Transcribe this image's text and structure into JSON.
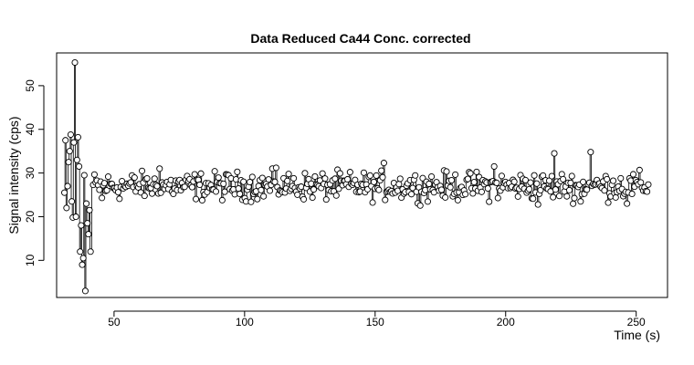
{
  "chart_data": {
    "type": "scatter",
    "title": "Data Reduced Ca44 Conc. corrected",
    "xlabel": "Time (s)",
    "ylabel": "Signal intensity (cps)",
    "xlim": [
      28,
      262
    ],
    "ylim": [
      1.5,
      57.5
    ],
    "xticks": [
      50,
      100,
      150,
      200,
      250
    ],
    "yticks": [
      10,
      20,
      30,
      40,
      50
    ],
    "grid": false,
    "legend": "none",
    "series": [
      {
        "marker": "open-circle",
        "line": "vertical-segments",
        "point_color": "#000000",
        "x": [
          31.0,
          31.4,
          31.8,
          32.2,
          32.6,
          33.0,
          33.4,
          33.8,
          34.2,
          34.6,
          35.0,
          35.4,
          35.8,
          36.2,
          36.6,
          37.0,
          37.4,
          37.8,
          38.2,
          38.6,
          39.0,
          39.4,
          39.8,
          40.2,
          40.6,
          41.0
        ],
        "y": [
          25.5,
          37.5,
          22.0,
          27.0,
          32.5,
          35.0,
          38.8,
          23.5,
          19.8,
          37.0,
          55.3,
          20.0,
          33.0,
          38.2,
          31.5,
          12.0,
          18.0,
          9.0,
          10.5,
          29.5,
          3.0,
          23.0,
          18.5,
          16.0,
          21.5,
          12.0
        ],
        "noise_segment": {
          "x_start": 42,
          "x_end": 255,
          "step": 0.48,
          "center": 27,
          "spread": 2.5
        },
        "spikes": [
          {
            "x": 67.5,
            "y": 31.0
          },
          {
            "x": 110.5,
            "y": 31.0
          },
          {
            "x": 153.5,
            "y": 32.3
          },
          {
            "x": 195.5,
            "y": 31.5
          },
          {
            "x": 218.5,
            "y": 34.5
          },
          {
            "x": 232.5,
            "y": 34.8
          }
        ],
        "dips": [
          {
            "x": 45.5,
            "y": 24.3
          },
          {
            "x": 246.5,
            "y": 23.0
          },
          {
            "x": 228.5,
            "y": 23.5
          },
          {
            "x": 212.5,
            "y": 22.8
          }
        ]
      }
    ]
  }
}
